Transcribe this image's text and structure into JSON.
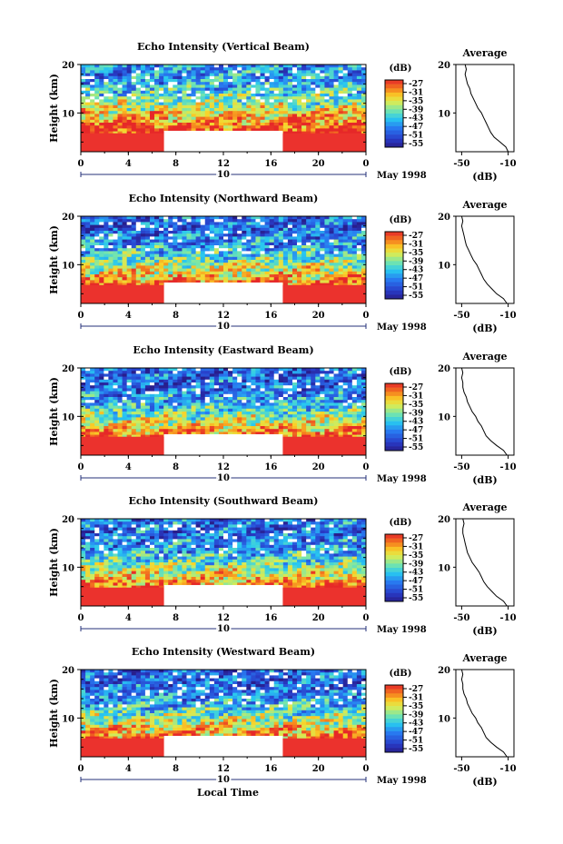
{
  "figure": {
    "xlabel": "Local Time",
    "colorbar": {
      "unit_label": "(dB)",
      "ticks": [
        "-27",
        "-31",
        "-35",
        "-39",
        "-43",
        "-47",
        "-51",
        "-55"
      ],
      "range": [
        -57,
        -25
      ]
    },
    "date_label": "May 1998",
    "day_marker": "10"
  },
  "chart_data": [
    {
      "type": "heatmap",
      "title": "Echo Intensity (Vertical Beam)",
      "ylabel": "Height (km)",
      "xticks": [
        "0",
        "4",
        "8",
        "12",
        "16",
        "20",
        "0"
      ],
      "xlim": [
        0,
        24
      ],
      "yticks": [
        "20",
        "10"
      ],
      "ylim": [
        2,
        20
      ],
      "missing_data_interval_hours": [
        7,
        17
      ],
      "profile": {
        "title": "Average",
        "xlabel": "(dB)",
        "xticks": [
          "-50",
          "-10"
        ],
        "yticks": [
          "20",
          "10"
        ],
        "xlim": [
          -55,
          -5
        ],
        "ylim": [
          2,
          20
        ],
        "heights_km": [
          2,
          3,
          4,
          5,
          6,
          7,
          8,
          9,
          10,
          11,
          12,
          13,
          14,
          15,
          16,
          17,
          18,
          19,
          20
        ],
        "values_db": [
          -10,
          -12,
          -17,
          -22,
          -25,
          -27,
          -29,
          -31,
          -33,
          -36,
          -38,
          -40,
          -42,
          -43,
          -45,
          -46,
          -47,
          -46,
          -47
        ]
      }
    },
    {
      "type": "heatmap",
      "title": "Echo Intensity (Northward Beam)",
      "ylabel": "Height (km)",
      "xticks": [
        "0",
        "4",
        "8",
        "12",
        "16",
        "20",
        "0"
      ],
      "xlim": [
        0,
        24
      ],
      "yticks": [
        "20",
        "10"
      ],
      "ylim": [
        2,
        20
      ],
      "missing_data_interval_hours": [
        7,
        17
      ],
      "profile": {
        "title": "Average",
        "xlabel": "(dB)",
        "xticks": [
          "-50",
          "-10"
        ],
        "yticks": [
          "20",
          "10"
        ],
        "xlim": [
          -55,
          -5
        ],
        "ylim": [
          2,
          20
        ],
        "heights_km": [
          2,
          3,
          4,
          5,
          6,
          7,
          8,
          9,
          10,
          11,
          12,
          13,
          14,
          15,
          16,
          17,
          18,
          19,
          20
        ],
        "values_db": [
          -11,
          -14,
          -20,
          -24,
          -28,
          -31,
          -33,
          -35,
          -37,
          -40,
          -42,
          -44,
          -46,
          -47,
          -48,
          -49,
          -50,
          -49,
          -50
        ]
      }
    },
    {
      "type": "heatmap",
      "title": "Echo Intensity (Eastward Beam)",
      "ylabel": "Height (km)",
      "xticks": [
        "0",
        "4",
        "8",
        "12",
        "16",
        "20",
        "0"
      ],
      "xlim": [
        0,
        24
      ],
      "yticks": [
        "20",
        "10"
      ],
      "ylim": [
        2,
        20
      ],
      "missing_data_interval_hours": [
        7,
        17
      ],
      "profile": {
        "title": "Average",
        "xlabel": "(dB)",
        "xticks": [
          "-50",
          "-10"
        ],
        "yticks": [
          "20",
          "10"
        ],
        "xlim": [
          -55,
          -5
        ],
        "ylim": [
          2,
          20
        ],
        "heights_km": [
          2,
          3,
          4,
          5,
          6,
          7,
          8,
          9,
          10,
          11,
          12,
          13,
          14,
          15,
          16,
          17,
          18,
          19,
          20
        ],
        "values_db": [
          -11,
          -14,
          -20,
          -25,
          -29,
          -31,
          -33,
          -36,
          -38,
          -41,
          -43,
          -45,
          -46,
          -48,
          -49,
          -49,
          -50,
          -49,
          -50
        ]
      }
    },
    {
      "type": "heatmap",
      "title": "Echo Intensity (Southward Beam)",
      "ylabel": "Height (km)",
      "xticks": [
        "0",
        "4",
        "8",
        "12",
        "16",
        "20",
        "0"
      ],
      "xlim": [
        0,
        24
      ],
      "yticks": [
        "20",
        "10"
      ],
      "ylim": [
        2,
        20
      ],
      "missing_data_interval_hours": [
        7,
        17
      ],
      "profile": {
        "title": "Average",
        "xlabel": "(dB)",
        "xticks": [
          "-50",
          "-10"
        ],
        "yticks": [
          "20",
          "10"
        ],
        "xlim": [
          -55,
          -5
        ],
        "ylim": [
          2,
          20
        ],
        "heights_km": [
          2,
          3,
          4,
          5,
          6,
          7,
          8,
          9,
          10,
          11,
          12,
          13,
          14,
          15,
          16,
          17,
          18,
          19,
          20
        ],
        "values_db": [
          -11,
          -14,
          -20,
          -24,
          -28,
          -31,
          -33,
          -35,
          -38,
          -41,
          -43,
          -45,
          -46,
          -47,
          -48,
          -49,
          -49,
          -48,
          -49
        ]
      }
    },
    {
      "type": "heatmap",
      "title": "Echo Intensity (Westward Beam)",
      "ylabel": "Height (km)",
      "xticks": [
        "0",
        "4",
        "8",
        "12",
        "16",
        "20",
        "0"
      ],
      "xlim": [
        0,
        24
      ],
      "yticks": [
        "20",
        "10"
      ],
      "ylim": [
        2,
        20
      ],
      "missing_data_interval_hours": [
        7,
        17
      ],
      "profile": {
        "title": "Average",
        "xlabel": "(dB)",
        "xticks": [
          "-50",
          "-10"
        ],
        "yticks": [
          "20",
          "10"
        ],
        "xlim": [
          -55,
          -5
        ],
        "ylim": [
          2,
          20
        ],
        "heights_km": [
          2,
          3,
          4,
          5,
          6,
          7,
          8,
          9,
          10,
          11,
          12,
          13,
          14,
          15,
          16,
          17,
          18,
          19,
          20
        ],
        "values_db": [
          -11,
          -14,
          -20,
          -25,
          -29,
          -31,
          -33,
          -36,
          -38,
          -41,
          -43,
          -45,
          -46,
          -48,
          -49,
          -49,
          -50,
          -49,
          -50
        ]
      }
    }
  ]
}
